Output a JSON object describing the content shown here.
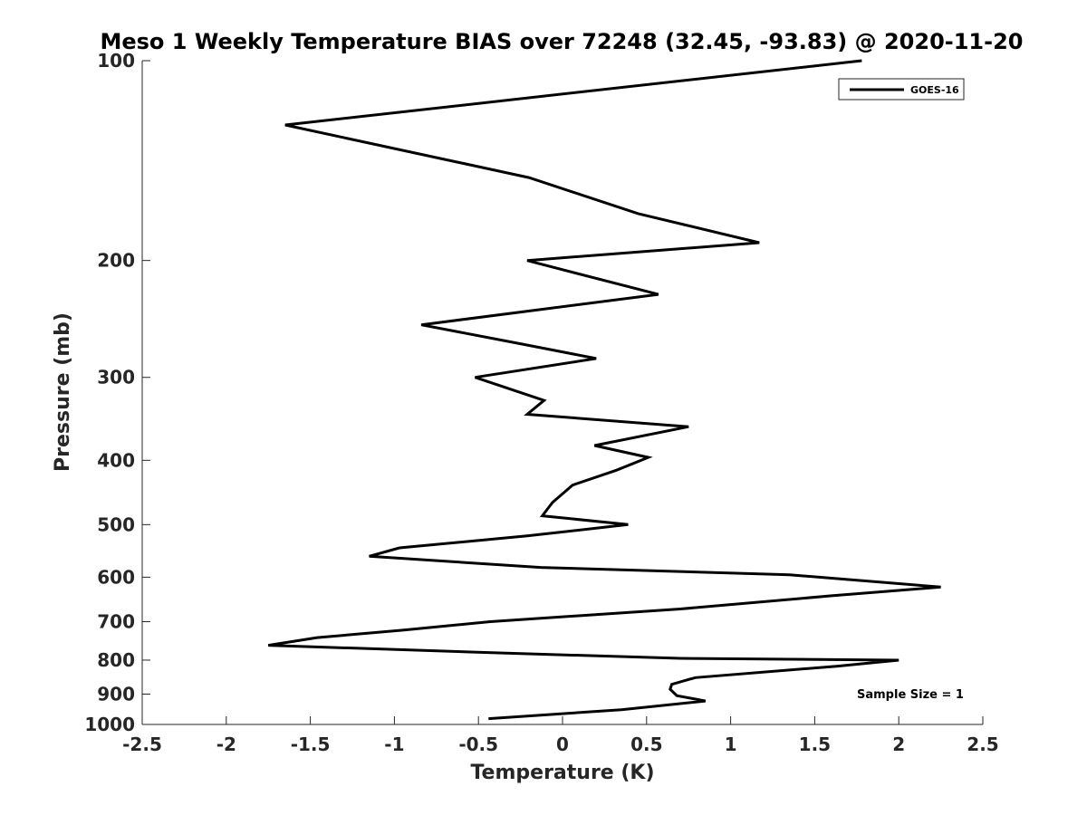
{
  "chart_data": {
    "type": "line",
    "title": "Meso 1 Weekly Temperature BIAS over 72248 (32.45, -93.83) @ 2020-11-20",
    "xlabel": "Temperature (K)",
    "ylabel": "Pressure (mb)",
    "xlim": [
      -2.5,
      2.5
    ],
    "ylim": [
      100,
      1000
    ],
    "y_scale": "log",
    "y_reversed": true,
    "x_ticks": [
      "-2.5",
      "-2",
      "-1.5",
      "-1",
      "-0.5",
      "0",
      "0.5",
      "1",
      "1.5",
      "2",
      "2.5"
    ],
    "y_ticks": [
      "100",
      "200",
      "300",
      "400",
      "500",
      "600",
      "700",
      "800",
      "900",
      "1000"
    ],
    "grid": false,
    "legend_position": "top-right",
    "annotation": "Sample Size = 1",
    "series": [
      {
        "name": "GOES-16",
        "color": "#000000",
        "points": [
          [
            1.78,
            100
          ],
          [
            -1.65,
            125
          ],
          [
            -0.2,
            150
          ],
          [
            0.45,
            170
          ],
          [
            1.17,
            188
          ],
          [
            -0.21,
            200
          ],
          [
            0.57,
            225
          ],
          [
            -0.84,
            250
          ],
          [
            -0.25,
            267
          ],
          [
            0.2,
            281
          ],
          [
            -0.52,
            300
          ],
          [
            -0.11,
            325
          ],
          [
            -0.21,
            341
          ],
          [
            0.75,
            356
          ],
          [
            0.19,
            380
          ],
          [
            0.51,
            396
          ],
          [
            0.32,
            414
          ],
          [
            0.06,
            436
          ],
          [
            -0.06,
            463
          ],
          [
            -0.12,
            485
          ],
          [
            0.39,
            500
          ],
          [
            -0.21,
            520
          ],
          [
            -0.97,
            542
          ],
          [
            -1.15,
            558
          ],
          [
            -0.13,
            580
          ],
          [
            1.35,
            595
          ],
          [
            2.25,
            621
          ],
          [
            1.6,
            640
          ],
          [
            0.7,
            670
          ],
          [
            -0.43,
            700
          ],
          [
            -0.95,
            721
          ],
          [
            -1.46,
            740
          ],
          [
            -1.75,
            760
          ],
          [
            -0.4,
            780
          ],
          [
            0.7,
            795
          ],
          [
            2.0,
            800
          ],
          [
            1.63,
            817
          ],
          [
            0.79,
            850
          ],
          [
            0.65,
            870
          ],
          [
            0.64,
            885
          ],
          [
            0.68,
            905
          ],
          [
            0.85,
            922
          ],
          [
            0.35,
            950
          ],
          [
            -0.44,
            980
          ]
        ]
      }
    ]
  }
}
